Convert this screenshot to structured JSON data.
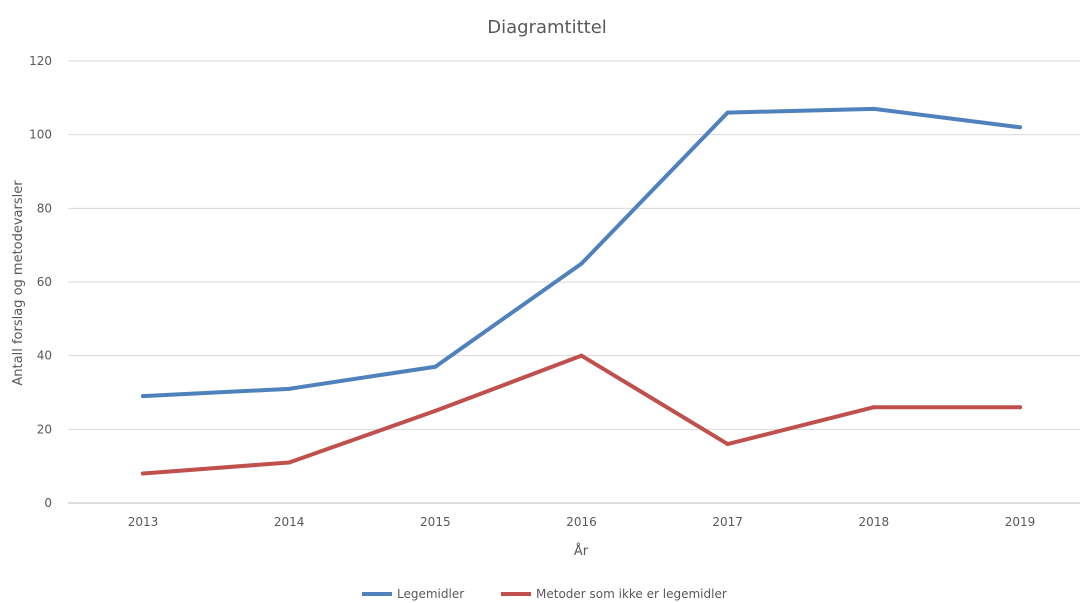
{
  "chart_data": {
    "type": "line",
    "title": "Diagramtittel",
    "xlabel": "År",
    "ylabel": "Antall forslag og metodevarsler",
    "categories": [
      "2013",
      "2014",
      "2015",
      "2016",
      "2017",
      "2018",
      "2019"
    ],
    "ylim": [
      0,
      120
    ],
    "yticks": [
      0,
      20,
      40,
      60,
      80,
      100,
      120
    ],
    "grid": true,
    "legend_position": "bottom",
    "series": [
      {
        "name": "Legemidler",
        "color": "#4f81bd",
        "values": [
          29,
          31,
          37,
          65,
          106,
          107,
          102
        ]
      },
      {
        "name": "Metoder som ikke er legemidler",
        "color": "#c0504d",
        "values": [
          8,
          11,
          25,
          40,
          16,
          26,
          26
        ]
      }
    ]
  }
}
